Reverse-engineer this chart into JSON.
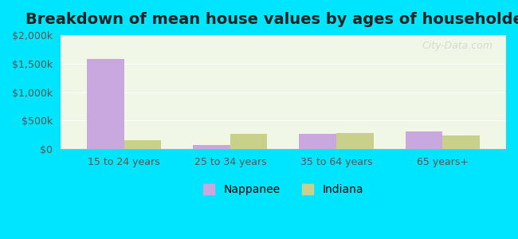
{
  "title": "Breakdown of mean house values by ages of householders",
  "categories": [
    "15 to 24 years",
    "25 to 34 years",
    "35 to 64 years",
    "65 years+"
  ],
  "nappanee_values": [
    1580000,
    75000,
    270000,
    305000
  ],
  "indiana_values": [
    155000,
    265000,
    285000,
    235000
  ],
  "nappanee_color": "#c9a8e0",
  "indiana_color": "#c8d08a",
  "bar_width": 0.35,
  "ylim": [
    0,
    2000000
  ],
  "yticks": [
    0,
    500000,
    1000000,
    1500000,
    2000000
  ],
  "ytick_labels": [
    "$0",
    "$500k",
    "$1,000k",
    "$1,500k",
    "$2,000k"
  ],
  "background_color": "#00e5ff",
  "plot_bg_start": "#f0f7e6",
  "plot_bg_end": "#ffffff",
  "title_fontsize": 14,
  "tick_fontsize": 9,
  "legend_fontsize": 10,
  "watermark": "City-Data.com"
}
